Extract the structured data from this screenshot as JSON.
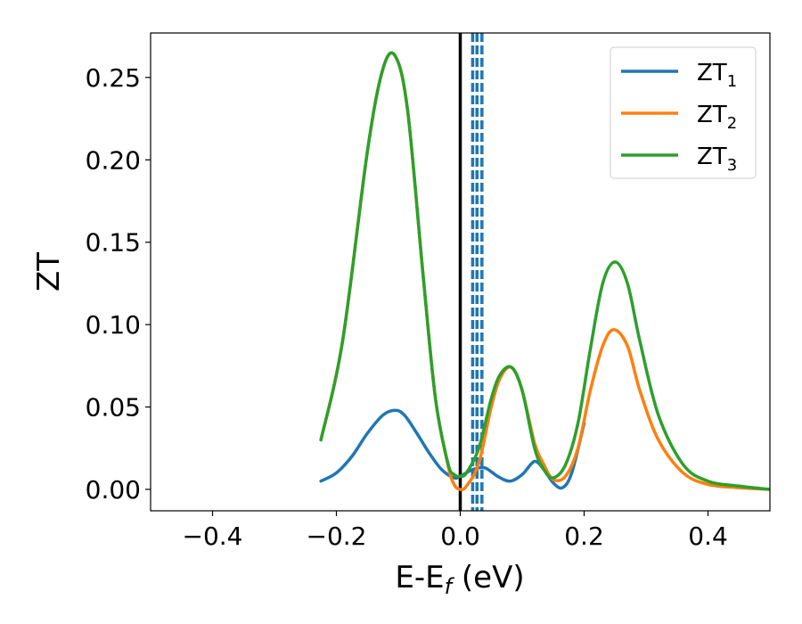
{
  "chart_data": {
    "type": "line",
    "title": "",
    "xlabel": "E-E",
    "xlabel_subscript": "f",
    "xlabel_unit": " (eV)",
    "ylabel": "ZT",
    "xlim": [
      -0.5,
      0.5
    ],
    "ylim": [
      -0.013,
      0.277
    ],
    "xticks": [
      -0.4,
      -0.2,
      0.0,
      0.2,
      0.4
    ],
    "xtick_labels": [
      "−0.4",
      "−0.2",
      "0.0",
      "0.2",
      "0.4"
    ],
    "yticks": [
      0.0,
      0.05,
      0.1,
      0.15,
      0.2,
      0.25
    ],
    "ytick_labels": [
      "0.00",
      "0.05",
      "0.10",
      "0.15",
      "0.20",
      "0.25"
    ],
    "grid": false,
    "legend_position": "top-right",
    "vertical_lines": [
      {
        "x": 0.0,
        "color": "#000000",
        "style": "solid"
      },
      {
        "x": 0.02,
        "color": "#1f77b4",
        "style": "dashed"
      },
      {
        "x": 0.027,
        "color": "#1f77b4",
        "style": "dashed"
      },
      {
        "x": 0.035,
        "color": "#1f77b4",
        "style": "dashed"
      }
    ],
    "series": [
      {
        "name": "ZT",
        "name_subscript": "1",
        "color": "#1f77b4",
        "x": [
          -0.225,
          -0.2,
          -0.175,
          -0.15,
          -0.125,
          -0.105,
          -0.09,
          -0.07,
          -0.05,
          -0.03,
          -0.01,
          0.0,
          0.02,
          0.04,
          0.06,
          0.08,
          0.1,
          0.12,
          0.135,
          0.15,
          0.165,
          0.18,
          0.2
        ],
        "y": [
          0.005,
          0.01,
          0.02,
          0.034,
          0.045,
          0.048,
          0.045,
          0.034,
          0.022,
          0.012,
          0.007,
          0.008,
          0.012,
          0.013,
          0.008,
          0.005,
          0.009,
          0.017,
          0.012,
          0.004,
          0.001,
          0.01,
          0.04
        ]
      },
      {
        "name": "ZT",
        "name_subscript": "2",
        "color": "#ff7f0e",
        "x": [
          -0.225,
          -0.19,
          -0.15,
          -0.125,
          -0.105,
          -0.085,
          -0.06,
          -0.04,
          -0.02,
          -0.01,
          0.0,
          0.01,
          0.03,
          0.05,
          0.065,
          0.083,
          0.1,
          0.12,
          0.135,
          0.15,
          0.17,
          0.19,
          0.21,
          0.23,
          0.248,
          0.27,
          0.29,
          0.32,
          0.36,
          0.4,
          0.45,
          0.5
        ],
        "y": [
          0.03,
          0.09,
          0.205,
          0.255,
          0.263,
          0.23,
          0.13,
          0.055,
          0.015,
          0.003,
          0.0,
          0.002,
          0.016,
          0.05,
          0.068,
          0.074,
          0.06,
          0.028,
          0.015,
          0.006,
          0.008,
          0.025,
          0.06,
          0.087,
          0.097,
          0.087,
          0.06,
          0.03,
          0.01,
          0.003,
          0.001,
          0.0
        ]
      },
      {
        "name": "ZT",
        "name_subscript": "3",
        "color": "#2ca02c",
        "x": [
          -0.225,
          -0.19,
          -0.15,
          -0.125,
          -0.105,
          -0.085,
          -0.06,
          -0.04,
          -0.02,
          -0.01,
          0.0,
          0.01,
          0.03,
          0.05,
          0.065,
          0.083,
          0.1,
          0.12,
          0.135,
          0.15,
          0.17,
          0.19,
          0.21,
          0.23,
          0.25,
          0.27,
          0.29,
          0.32,
          0.36,
          0.4,
          0.45,
          0.5
        ],
        "y": [
          0.03,
          0.09,
          0.205,
          0.255,
          0.263,
          0.23,
          0.13,
          0.055,
          0.016,
          0.009,
          0.008,
          0.01,
          0.025,
          0.055,
          0.07,
          0.074,
          0.06,
          0.025,
          0.012,
          0.007,
          0.015,
          0.04,
          0.085,
          0.125,
          0.138,
          0.125,
          0.09,
          0.045,
          0.015,
          0.005,
          0.002,
          0.0
        ]
      }
    ]
  }
}
